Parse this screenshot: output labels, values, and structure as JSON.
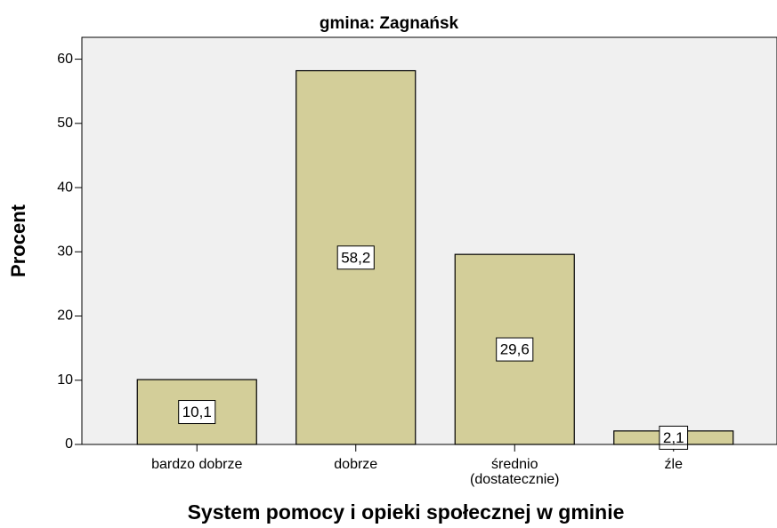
{
  "chart_data": {
    "type": "bar",
    "title": "gmina: Zagnańsk",
    "x_label": "System pomocy i opieki społecznej w gminie",
    "y_label": "Procent",
    "categories": [
      "bardzo dobrze",
      "dobrze",
      "średnio (dostatecznie)",
      "źle"
    ],
    "values": [
      10.1,
      58.2,
      29.6,
      2.1
    ],
    "value_labels": [
      "10,1",
      "58,2",
      "29,6",
      "2,1"
    ],
    "color": "#d3ce99",
    "ylim": [
      0,
      63.4
    ],
    "yticks": [
      0,
      10,
      20,
      30,
      40,
      50,
      60
    ]
  }
}
